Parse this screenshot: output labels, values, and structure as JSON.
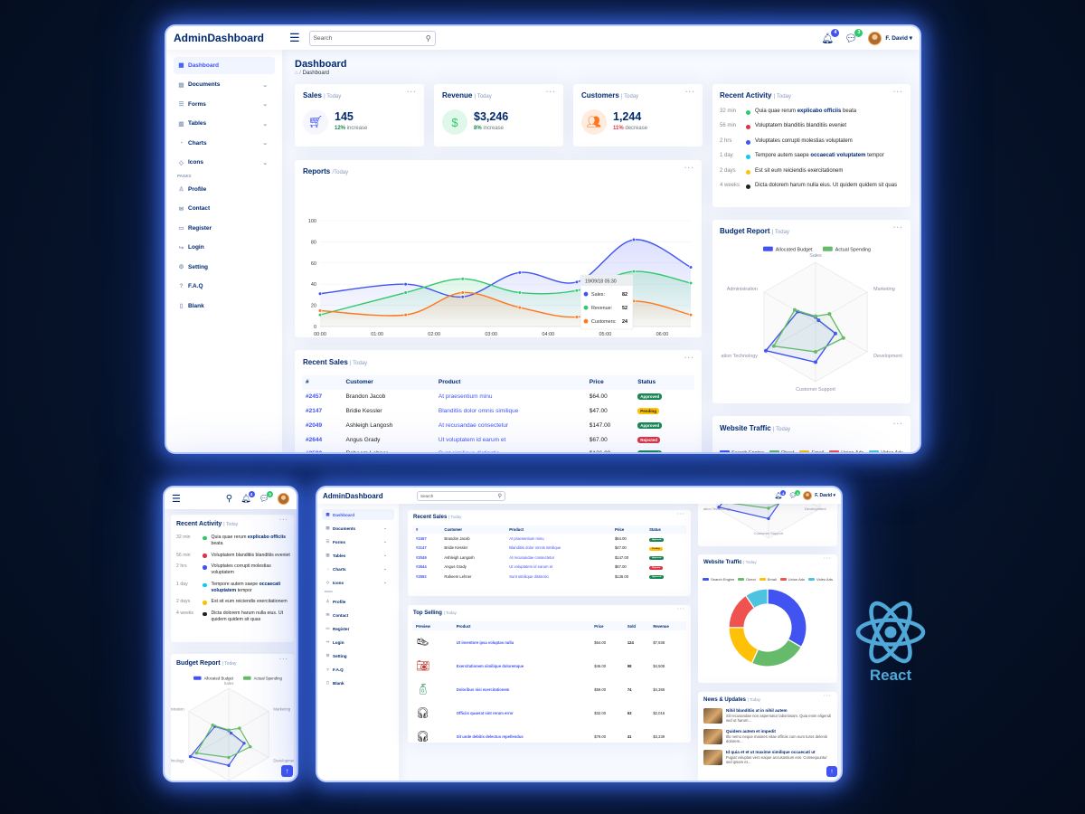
{
  "app": {
    "name": "AdminDashboard",
    "search_placeholder": "Search",
    "user": "F. David",
    "notif_count": "4",
    "msg_count": "3"
  },
  "page": {
    "title": "Dashboard",
    "breadcrumb_sep": "/",
    "breadcrumb": "Dashboard"
  },
  "nav": {
    "items": [
      {
        "label": "Dashboard",
        "icon": "grid-icon"
      },
      {
        "label": "Documents",
        "icon": "document-icon"
      },
      {
        "label": "Forms",
        "icon": "form-icon"
      },
      {
        "label": "Tables",
        "icon": "table-icon"
      },
      {
        "label": "Charts",
        "icon": "chart-icon"
      },
      {
        "label": "Icons",
        "icon": "gem-icon"
      }
    ],
    "section": "PAGES",
    "pages": [
      {
        "label": "Profile",
        "icon": "person-icon"
      },
      {
        "label": "Contact",
        "icon": "envelope-icon"
      },
      {
        "label": "Register",
        "icon": "card-icon"
      },
      {
        "label": "Login",
        "icon": "login-icon"
      },
      {
        "label": "Setting",
        "icon": "gear-icon"
      },
      {
        "label": "F.A.Q",
        "icon": "question-icon"
      },
      {
        "label": "Blank",
        "icon": "file-icon"
      }
    ]
  },
  "kpis": [
    {
      "title": "Sales",
      "period": "| Today",
      "value": "145",
      "pct": "12%",
      "label": "increase",
      "color": "#4154f1",
      "bg": "#f6f6fe",
      "pct_color": "#198754"
    },
    {
      "title": "Revenue",
      "period": "| Today",
      "value": "$3,246",
      "pct": "8%",
      "label": "increase",
      "color": "#2eca6a",
      "bg": "#e0f8e9",
      "pct_color": "#198754"
    },
    {
      "title": "Customers",
      "period": "| Today",
      "value": "1,244",
      "pct": "11%",
      "label": "decrease",
      "color": "#ff771d",
      "bg": "#ffecdf",
      "pct_color": "#dc3545"
    }
  ],
  "reports": {
    "title": "Reports",
    "period": "/Today",
    "tooltip": {
      "time": "19/09/18 05:30",
      "rows": [
        {
          "label": "Sales:",
          "value": "82",
          "color": "#4154f1"
        },
        {
          "label": "Revenue:",
          "value": "52",
          "color": "#2eca6a"
        },
        {
          "label": "Customers:",
          "value": "24",
          "color": "#ff771d"
        }
      ]
    }
  },
  "chart_data": [
    {
      "type": "line",
      "x": [
        "00:00",
        "01:00",
        "02:00",
        "03:00",
        "04:00",
        "05:00",
        "06:00"
      ],
      "yticks": [
        0,
        20,
        40,
        60,
        80,
        100
      ],
      "ylim": [
        0,
        100
      ],
      "series": [
        {
          "name": "Sales",
          "color": "#4154f1",
          "points": [
            [
              0.0,
              31
            ],
            [
              1.5,
              40
            ],
            [
              2.5,
              28
            ],
            [
              3.5,
              51
            ],
            [
              4.5,
              42
            ],
            [
              5.5,
              82
            ],
            [
              6.5,
              56
            ]
          ]
        },
        {
          "name": "Revenue",
          "color": "#2eca6a",
          "points": [
            [
              0.0,
              11
            ],
            [
              1.5,
              32
            ],
            [
              2.5,
              45
            ],
            [
              3.5,
              32
            ],
            [
              4.5,
              34
            ],
            [
              5.5,
              52
            ],
            [
              6.5,
              41
            ]
          ]
        },
        {
          "name": "Customers",
          "color": "#ff771d",
          "points": [
            [
              0.0,
              15
            ],
            [
              1.5,
              11
            ],
            [
              2.5,
              32
            ],
            [
              3.5,
              18
            ],
            [
              4.5,
              9
            ],
            [
              5.5,
              24
            ],
            [
              6.5,
              11
            ]
          ]
        }
      ],
      "legend": "bottom"
    },
    {
      "type": "radar",
      "axes": [
        "Sales",
        "Marketing",
        "Development",
        "Customer Support",
        "Information Technology",
        "Administration"
      ],
      "series": [
        {
          "name": "Allocated Budget",
          "color": "#4154f1",
          "values": [
            4200,
            3000,
            20000,
            35000,
            50000,
            18000
          ]
        },
        {
          "name": "Actual Spending",
          "color": "#66bb6a",
          "values": [
            5000,
            14000,
            28000,
            26000,
            42000,
            21000
          ]
        }
      ],
      "max": 52000,
      "legend": "top"
    },
    {
      "type": "pie",
      "donut": true,
      "labels": [
        "Search Engine",
        "Direct",
        "Email",
        "Union Ads",
        "Video Ads"
      ],
      "values": [
        1048,
        735,
        580,
        484,
        300
      ],
      "colors": [
        "#4154f1",
        "#66bb6a",
        "#ffc107",
        "#ef5350",
        "#4ec3e0"
      ],
      "legend": "top"
    }
  ],
  "activity": {
    "title": "Recent Activity",
    "period": "| Today",
    "items": [
      {
        "time": "32 min",
        "color": "#2eca6a",
        "pre": "Quia quae rerum ",
        "bold": "explicabo officiis",
        "post": " beata"
      },
      {
        "time": "56 min",
        "color": "#dc3545",
        "pre": "Voluptatem blanditiis blanditiis eveniet",
        "bold": "",
        "post": ""
      },
      {
        "time": "2 hrs",
        "color": "#4154f1",
        "pre": "Voluptates corrupti molestias voluptatem",
        "bold": "",
        "post": ""
      },
      {
        "time": "1 day",
        "color": "#0dcaf0",
        "pre": "Tempore autem saepe ",
        "bold": "occaecati voluptatem",
        "post": " tempor"
      },
      {
        "time": "2 days",
        "color": "#ffc107",
        "pre": "Est sit eum reiciendis exercitationem",
        "bold": "",
        "post": ""
      },
      {
        "time": "4 weeks",
        "color": "#222222",
        "pre": "Dicta dolorem harum nulla eius. Ut quidem quidem sit quas",
        "bold": "",
        "post": ""
      }
    ]
  },
  "budget": {
    "title": "Budget Report",
    "period": "| Today",
    "axis_labels_shown": [
      "Sales",
      "Marketing",
      "Development",
      "Customer Support",
      "ation Technology",
      "Administration"
    ]
  },
  "traffic": {
    "title": "Website Traffic",
    "period": "| Today"
  },
  "sales": {
    "title": "Recent Sales",
    "period": "| Today",
    "headers": [
      "#",
      "Customer",
      "Product",
      "Price",
      "Status"
    ],
    "rows": [
      {
        "id": "#2457",
        "customer": "Brandon Jacob",
        "product": "At praesentium minu",
        "price": "$64.00",
        "status": "Approved",
        "st": "a"
      },
      {
        "id": "#2147",
        "customer": "Bridie Kessler",
        "product": "Blanditiis dolor omnis similique",
        "price": "$47.00",
        "status": "Pending",
        "st": "p"
      },
      {
        "id": "#2049",
        "customer": "Ashleigh Langosh",
        "product": "At recusandae consectetur",
        "price": "$147.00",
        "status": "Approved",
        "st": "a"
      },
      {
        "id": "#2644",
        "customer": "Angus Grady",
        "product": "Ut voluptatem id earum et",
        "price": "$67.00",
        "status": "Rejected",
        "st": "r"
      },
      {
        "id": "#2592",
        "customer": "Raheem Lehner",
        "product": "Sunt similique distinctio",
        "price": "$136.00",
        "status": "Approved",
        "st": "a"
      }
    ]
  },
  "topselling": {
    "title": "Top Selling",
    "period": "| Today",
    "headers": [
      "Preview",
      "Product",
      "Price",
      "Sold",
      "Revenue"
    ],
    "rows": [
      {
        "icon": "shoe-icon",
        "product": "Ut inventore ipsa voluptas nulla",
        "price": "$64.00",
        "sold": "124",
        "revenue": "$7,936"
      },
      {
        "icon": "camera-icon",
        "product": "Exercitationem similique doloremque",
        "price": "$46.00",
        "sold": "98",
        "revenue": "$4,508"
      },
      {
        "icon": "bottle-icon",
        "product": "Doloribus nisi exercitationem",
        "price": "$59.00",
        "sold": "74",
        "revenue": "$4,366"
      },
      {
        "icon": "earbuds-icon",
        "product": "Officiis quaerat sint rerum error",
        "price": "$32.00",
        "sold": "63",
        "revenue": "$2,016"
      },
      {
        "icon": "headphones-icon",
        "product": "Sit unde debitis delectus repellendus",
        "price": "$79.00",
        "sold": "41",
        "revenue": "$3,239"
      }
    ]
  },
  "news": {
    "title": "News & Updates",
    "period": "| Today",
    "items": [
      {
        "title": "Nihil blanditiis at in nihil autem",
        "text": "Sit recusandae non aspernatur laboriosam. Quia enim eligendi sed ut harum..."
      },
      {
        "title": "Quidem autem et impedit",
        "text": "Illo nemo neque maiores vitae officiis cum eum turos deleniti dolorem..."
      },
      {
        "title": "Id quia et et ut maxime similique occaecati ut",
        "text": "Fugiat voluptas vero eaque accusantium eos. Consequuntur sed ipsam et..."
      }
    ]
  },
  "brand": {
    "name": "React",
    "color": "#4fa8d8"
  }
}
